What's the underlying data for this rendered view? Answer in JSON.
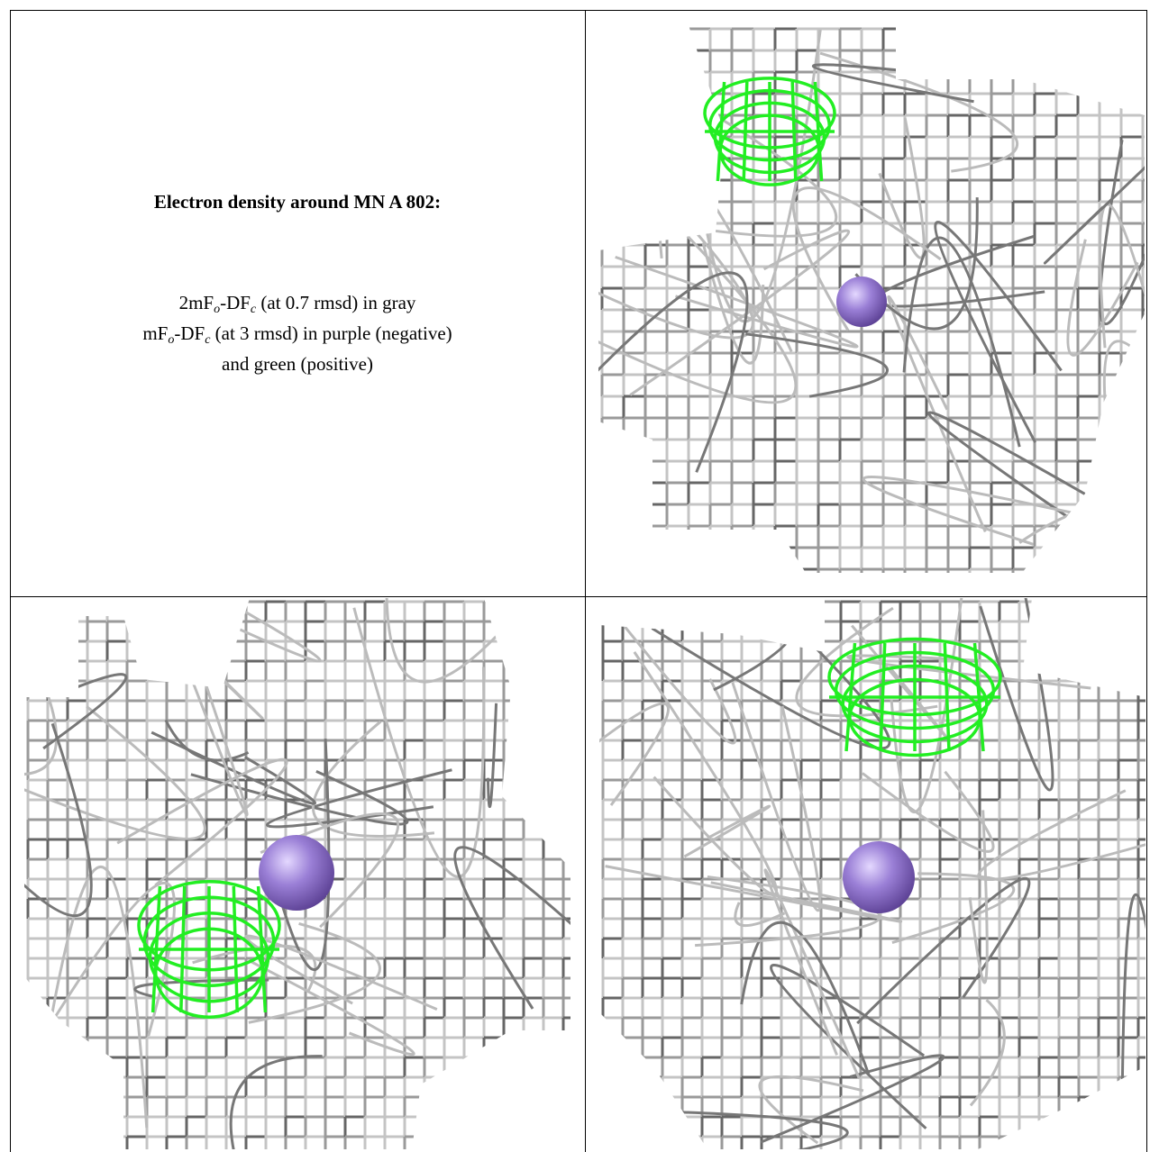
{
  "caption": {
    "title": "Electron density around MN A 802:",
    "lines": [
      [
        "2mF",
        "o",
        "-DF",
        "c",
        " (at 0.7 rmsd) in gray"
      ],
      [
        "mF",
        "o",
        "-DF",
        "c",
        " (at 3 rmsd) in purple (negative)"
      ],
      [
        "and green (positive)"
      ]
    ]
  }
}
